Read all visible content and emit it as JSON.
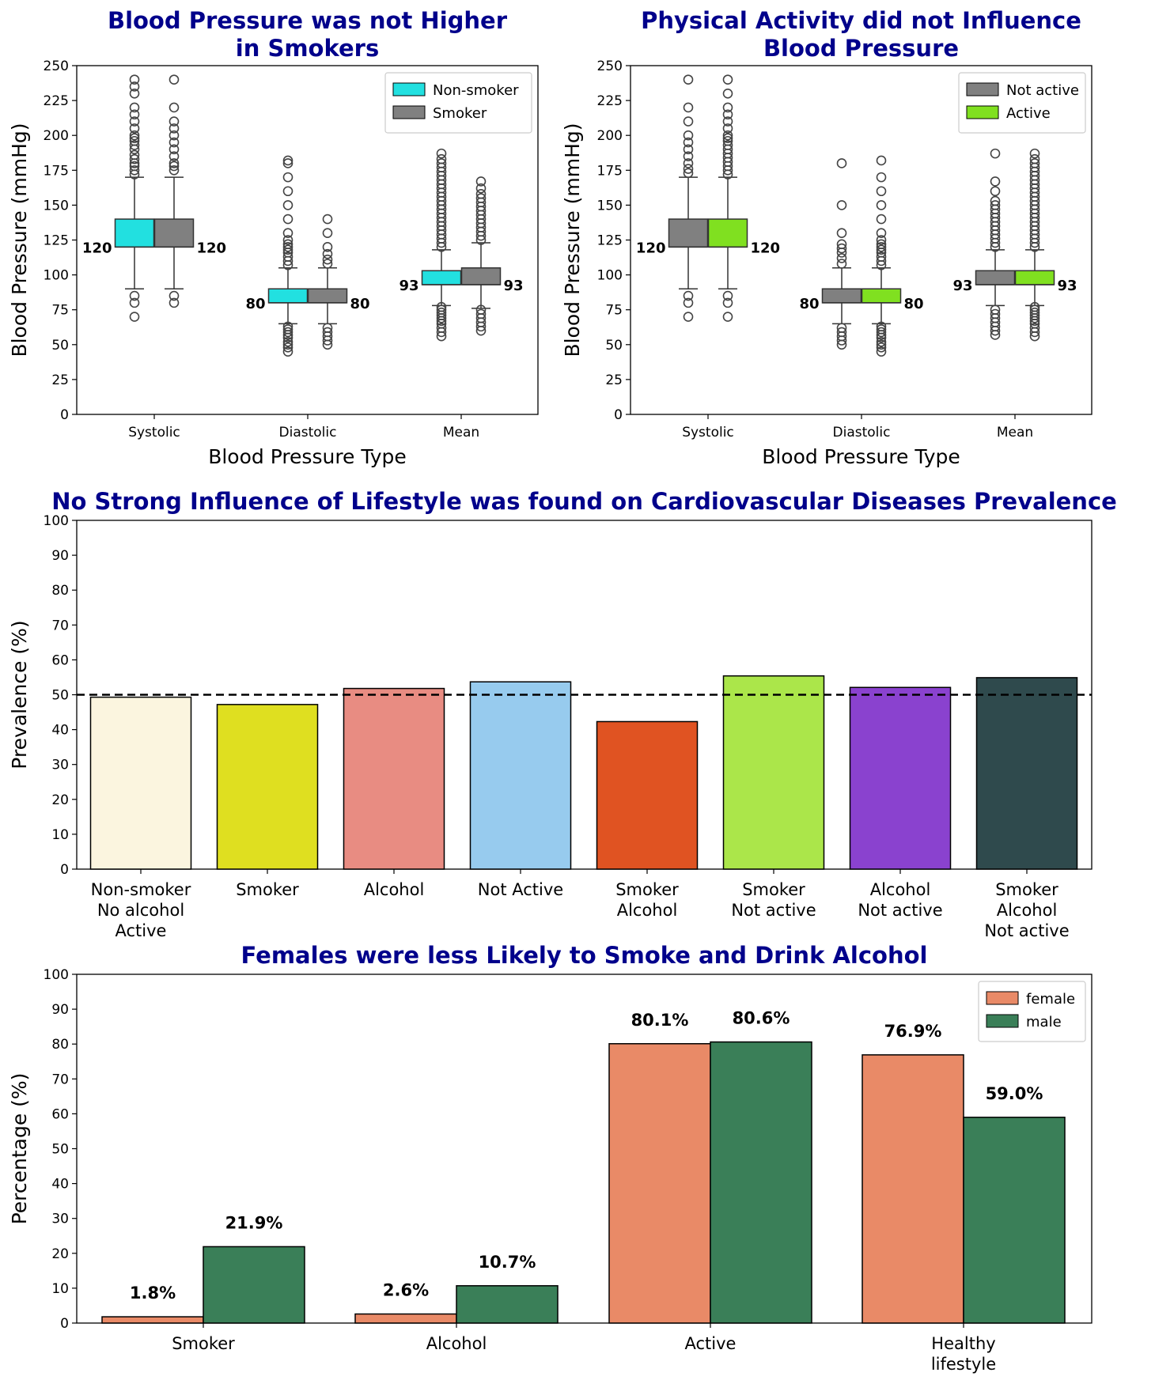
{
  "chart_data": [
    {
      "id": "bp-smoke",
      "type": "box",
      "title": [
        "Blood Pressure was not Higher",
        "in Smokers"
      ],
      "xlabel": "Blood Pressure Type",
      "ylabel": "Blood Pressure (mmHg)",
      "ylim": [
        0,
        250
      ],
      "yticks": [
        0,
        25,
        50,
        75,
        100,
        125,
        150,
        175,
        200,
        225,
        250
      ],
      "categories": [
        "Systolic",
        "Diastolic",
        "Mean"
      ],
      "legend_position": "upper-right",
      "series": [
        {
          "name": "Non-smoker",
          "color": "#22e0e0",
          "boxes": [
            {
              "q1": 120,
              "median": 120,
              "q3": 140,
              "whislo": 90,
              "whishi": 170,
              "fliers": [
                70,
                80,
                85,
                172,
                175,
                178,
                180,
                183,
                186,
                190,
                193,
                196,
                198,
                200,
                205,
                210,
                215,
                220,
                230,
                235,
                240
              ]
            },
            {
              "q1": 80,
              "median": 80,
              "q3": 90,
              "whislo": 65,
              "whishi": 105,
              "fliers": [
                45,
                48,
                50,
                52,
                55,
                57,
                59,
                61,
                63,
                107,
                110,
                113,
                116,
                118,
                120,
                122,
                125,
                130,
                140,
                150,
                160,
                170,
                180,
                182
              ]
            },
            {
              "q1": 93,
              "median": 93,
              "q3": 103,
              "whislo": 78,
              "whishi": 118,
              "fliers": [
                56,
                59,
                62,
                65,
                67,
                69,
                71,
                73,
                75,
                77,
                120,
                123,
                126,
                129,
                132,
                135,
                138,
                141,
                144,
                147,
                150,
                153,
                156,
                159,
                162,
                165,
                168,
                171,
                174,
                177,
                180,
                183,
                187
              ]
            }
          ]
        },
        {
          "name": "Smoker",
          "color": "#808080",
          "boxes": [
            {
              "q1": 120,
              "median": 120,
              "q3": 140,
              "whislo": 90,
              "whishi": 170,
              "fliers": [
                80,
                85,
                175,
                178,
                180,
                185,
                190,
                195,
                200,
                205,
                210,
                220,
                240
              ]
            },
            {
              "q1": 80,
              "median": 80,
              "q3": 90,
              "whislo": 65,
              "whishi": 105,
              "fliers": [
                50,
                53,
                56,
                59,
                62,
                108,
                111,
                115,
                120,
                130,
                140
              ]
            },
            {
              "q1": 93,
              "median": 93,
              "q3": 105,
              "whislo": 76,
              "whishi": 123,
              "fliers": [
                60,
                63,
                66,
                69,
                72,
                75,
                125,
                128,
                131,
                134,
                137,
                140,
                143,
                146,
                149,
                152,
                155,
                158,
                162,
                167
              ]
            }
          ]
        }
      ],
      "median_labels": [
        "120",
        "120",
        "80",
        "80",
        "93",
        "93"
      ]
    },
    {
      "id": "bp-active",
      "type": "box",
      "title": [
        "Physical Activity did not Influence",
        "Blood Pressure"
      ],
      "xlabel": "Blood Pressure Type",
      "ylabel": "Blood Pressure (mmHg)",
      "ylim": [
        0,
        250
      ],
      "yticks": [
        0,
        25,
        50,
        75,
        100,
        125,
        150,
        175,
        200,
        225,
        250
      ],
      "categories": [
        "Systolic",
        "Diastolic",
        "Mean"
      ],
      "legend_position": "upper-right",
      "series": [
        {
          "name": "Not active",
          "color": "#808080",
          "boxes": [
            {
              "q1": 120,
              "median": 120,
              "q3": 140,
              "whislo": 90,
              "whishi": 170,
              "fliers": [
                70,
                80,
                85,
                173,
                176,
                180,
                185,
                190,
                195,
                200,
                210,
                220,
                240
              ]
            },
            {
              "q1": 80,
              "median": 80,
              "q3": 90,
              "whislo": 65,
              "whishi": 105,
              "fliers": [
                50,
                53,
                56,
                59,
                62,
                108,
                112,
                116,
                119,
                122,
                130,
                150,
                180
              ]
            },
            {
              "q1": 93,
              "median": 93,
              "q3": 103,
              "whislo": 78,
              "whishi": 118,
              "fliers": [
                57,
                60,
                63,
                66,
                69,
                72,
                75,
                120,
                123,
                126,
                129,
                132,
                135,
                138,
                141,
                144,
                147,
                150,
                153,
                160,
                167,
                187
              ]
            }
          ]
        },
        {
          "name": "Active",
          "color": "#80e020",
          "boxes": [
            {
              "q1": 120,
              "median": 120,
              "q3": 140,
              "whislo": 90,
              "whishi": 170,
              "fliers": [
                70,
                80,
                85,
                172,
                175,
                178,
                181,
                184,
                187,
                190,
                193,
                196,
                198,
                200,
                205,
                210,
                215,
                220,
                230,
                240
              ]
            },
            {
              "q1": 80,
              "median": 80,
              "q3": 90,
              "whislo": 65,
              "whishi": 105,
              "fliers": [
                45,
                48,
                50,
                52,
                55,
                57,
                59,
                61,
                63,
                107,
                110,
                113,
                116,
                118,
                120,
                122,
                125,
                130,
                140,
                150,
                160,
                170,
                182
              ]
            },
            {
              "q1": 93,
              "median": 93,
              "q3": 103,
              "whislo": 78,
              "whishi": 118,
              "fliers": [
                56,
                59,
                62,
                65,
                67,
                69,
                71,
                73,
                75,
                77,
                120,
                123,
                126,
                129,
                132,
                135,
                138,
                141,
                144,
                147,
                150,
                153,
                156,
                159,
                162,
                165,
                168,
                171,
                174,
                177,
                180,
                183,
                187
              ]
            }
          ]
        }
      ],
      "median_labels": [
        "120",
        "120",
        "80",
        "80",
        "93",
        "93"
      ]
    },
    {
      "id": "cvd-prevalence",
      "type": "bar",
      "title": [
        "No Strong Influence of Lifestyle was found on Cardiovascular Diseases Prevalence"
      ],
      "xlabel": "",
      "ylabel": "Prevalence (%)",
      "ylim": [
        0,
        100
      ],
      "yticks": [
        0,
        10,
        20,
        30,
        40,
        50,
        60,
        70,
        80,
        90,
        100
      ],
      "reference_line": 50,
      "categories": [
        [
          "Non-smoker",
          "No alcohol",
          "Active"
        ],
        [
          "Smoker"
        ],
        [
          "Alcohol"
        ],
        [
          "Not Active"
        ],
        [
          "Smoker",
          "Alcohol"
        ],
        [
          "Smoker",
          "Not active"
        ],
        [
          "Alcohol",
          "Not active"
        ],
        [
          "Smoker",
          "Alcohol",
          "Not active"
        ]
      ],
      "values": [
        49.3,
        47.2,
        51.8,
        53.7,
        42.3,
        55.4,
        52.1,
        54.9
      ],
      "colors": [
        "#fbf5df",
        "#dfdf20",
        "#e88c82",
        "#97cbee",
        "#e05322",
        "#abe64a",
        "#8a42cf",
        "#2f4a4d"
      ]
    },
    {
      "id": "sex-lifestyle",
      "type": "bar",
      "title": [
        "Females were less Likely to Smoke and Drink Alcohol"
      ],
      "xlabel": "",
      "ylabel": "Percentage (%)",
      "ylim": [
        0,
        100
      ],
      "yticks": [
        0,
        10,
        20,
        30,
        40,
        50,
        60,
        70,
        80,
        90,
        100
      ],
      "legend_position": "upper-right",
      "categories": [
        [
          "Smoker"
        ],
        [
          "Alcohol"
        ],
        [
          "Active"
        ],
        [
          "Healthy",
          "lifestyle"
        ]
      ],
      "series": [
        {
          "name": "female",
          "color": "#e98a67",
          "values": [
            1.8,
            2.6,
            80.1,
            76.9
          ],
          "labels": [
            "1.8%",
            "2.6%",
            "80.1%",
            "76.9%"
          ]
        },
        {
          "name": "male",
          "color": "#3a7f58",
          "values": [
            21.9,
            10.7,
            80.6,
            59.0
          ],
          "labels": [
            "21.9%",
            "10.7%",
            "80.6%",
            "59.0%"
          ]
        }
      ]
    }
  ]
}
